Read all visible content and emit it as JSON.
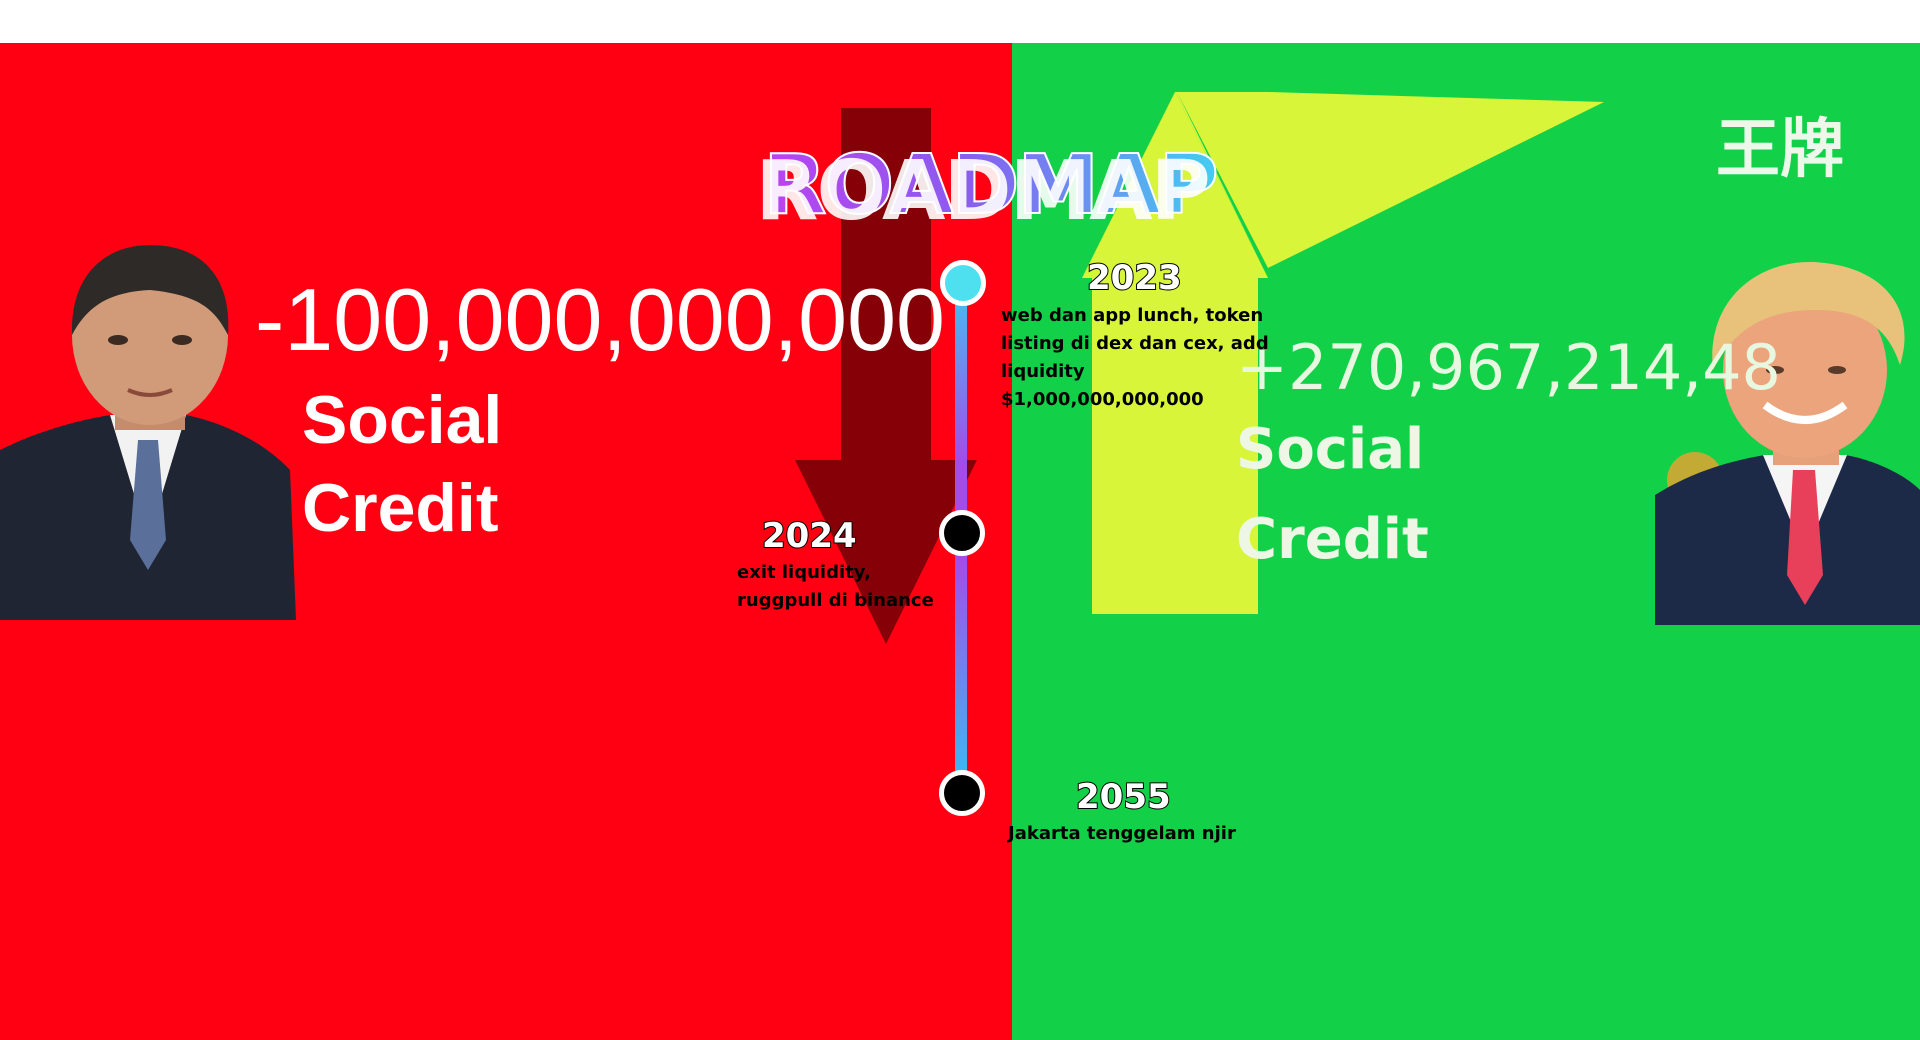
{
  "title": "ROADMAP",
  "left_panel": {
    "number": "-100,000,000,000",
    "line1": "Social",
    "line2": "Credit"
  },
  "right_panel": {
    "number": "+270,967,214,48",
    "line1": "Social",
    "line2": "Credit",
    "corner_text": "王牌"
  },
  "milestones": [
    {
      "year": "2023",
      "text": "web dan app lunch, token listing di dex dan cex, add liquidity $1,000,000,000,000"
    },
    {
      "year": "2024",
      "text": "exit liquidity, ruggpull di binance"
    },
    {
      "year": "2055",
      "text": "Jakarta tenggelam njir"
    }
  ],
  "colors": {
    "red_bg": "#ff0013",
    "green_bg": "#12d148",
    "down_arrow": "#860008",
    "up_arrow": "#d8f53a"
  },
  "icons": [
    "down-arrow-icon",
    "up-arrow-icon",
    "timeline-node-icon"
  ]
}
